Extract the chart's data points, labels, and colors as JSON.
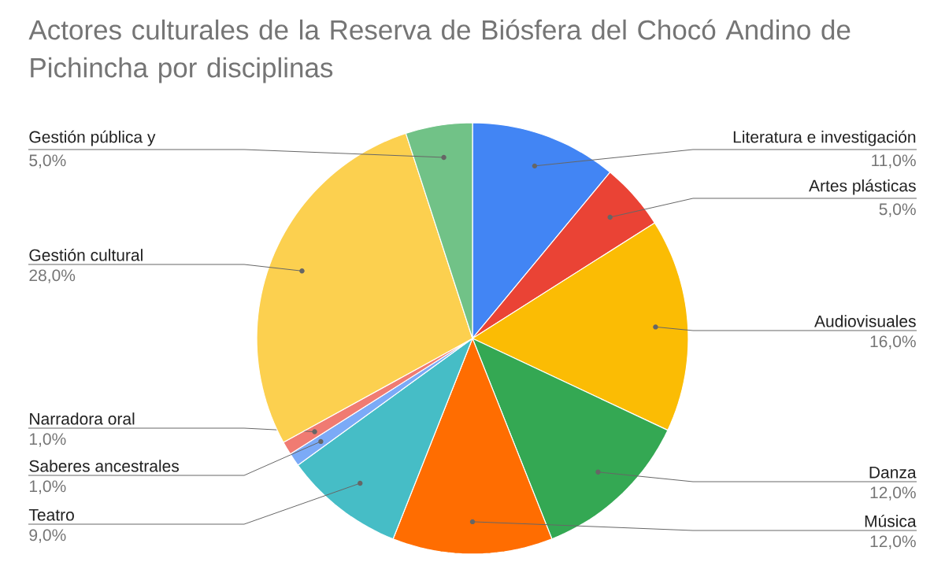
{
  "chart_data": {
    "type": "pie",
    "title": "Actores culturales de la Reserva de Biósfera del Chocó Andino de Pichincha por disciplinas",
    "categories": [
      "Literatura e investigación",
      "Artes plásticas",
      "Audiovisuales",
      "Danza",
      "Música",
      "Teatro",
      "Saberes ancestrales",
      "Narradora oral",
      "Gestión cultural",
      "Gestión pública y"
    ],
    "values": [
      11,
      5,
      16,
      12,
      12,
      9,
      1,
      1,
      28,
      5
    ],
    "value_labels": [
      "11,0%",
      "5,0%",
      "16,0%",
      "12,0%",
      "12,0%",
      "9,0%",
      "1,0%",
      "1,0%",
      "28,0%",
      "5,0%"
    ],
    "colors": [
      "#4285f4",
      "#ea4335",
      "#fbbc04",
      "#34a853",
      "#ff6d01",
      "#46bdc6",
      "#7baaf7",
      "#f07b72",
      "#fcd04f",
      "#71c287"
    ]
  }
}
